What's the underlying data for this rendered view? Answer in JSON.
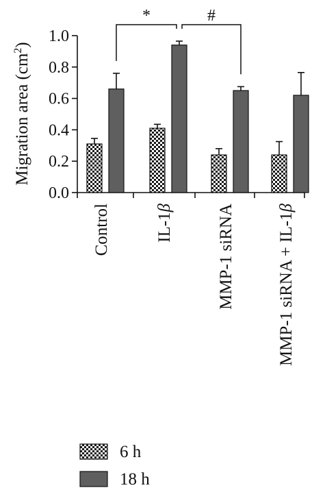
{
  "chart_data": {
    "type": "bar",
    "categories": [
      "Control",
      "IL-1",
      "MMP-1 siRNA",
      "MMP-1 siRNA + IL-1"
    ],
    "category_suffix_symbol": "β",
    "series": [
      {
        "name": "6 h",
        "values": [
          0.31,
          0.41,
          0.24,
          0.24
        ],
        "errors": [
          0.035,
          0.025,
          0.04,
          0.085
        ],
        "pattern": "checker",
        "color": "#1a1a1a"
      },
      {
        "name": "18 h",
        "values": [
          0.66,
          0.94,
          0.65,
          0.62
        ],
        "errors": [
          0.1,
          0.025,
          0.025,
          0.145
        ],
        "pattern": "solid",
        "color": "#5f5f5f"
      }
    ],
    "ylabel": "Migration area (cm",
    "ylabel_superscript": "2",
    "ylabel_close": ")",
    "ylim": [
      0.0,
      1.0
    ],
    "yticks": [
      "0.0",
      "0.2",
      "0.4",
      "0.6",
      "0.8",
      "1.0"
    ],
    "significance": [
      {
        "symbol": "*",
        "from": [
          0,
          1
        ],
        "to": [
          1,
          1
        ]
      },
      {
        "symbol": "#",
        "from": [
          1,
          1
        ],
        "to": [
          2,
          1
        ]
      }
    ],
    "legend_position": "bottom-left"
  }
}
